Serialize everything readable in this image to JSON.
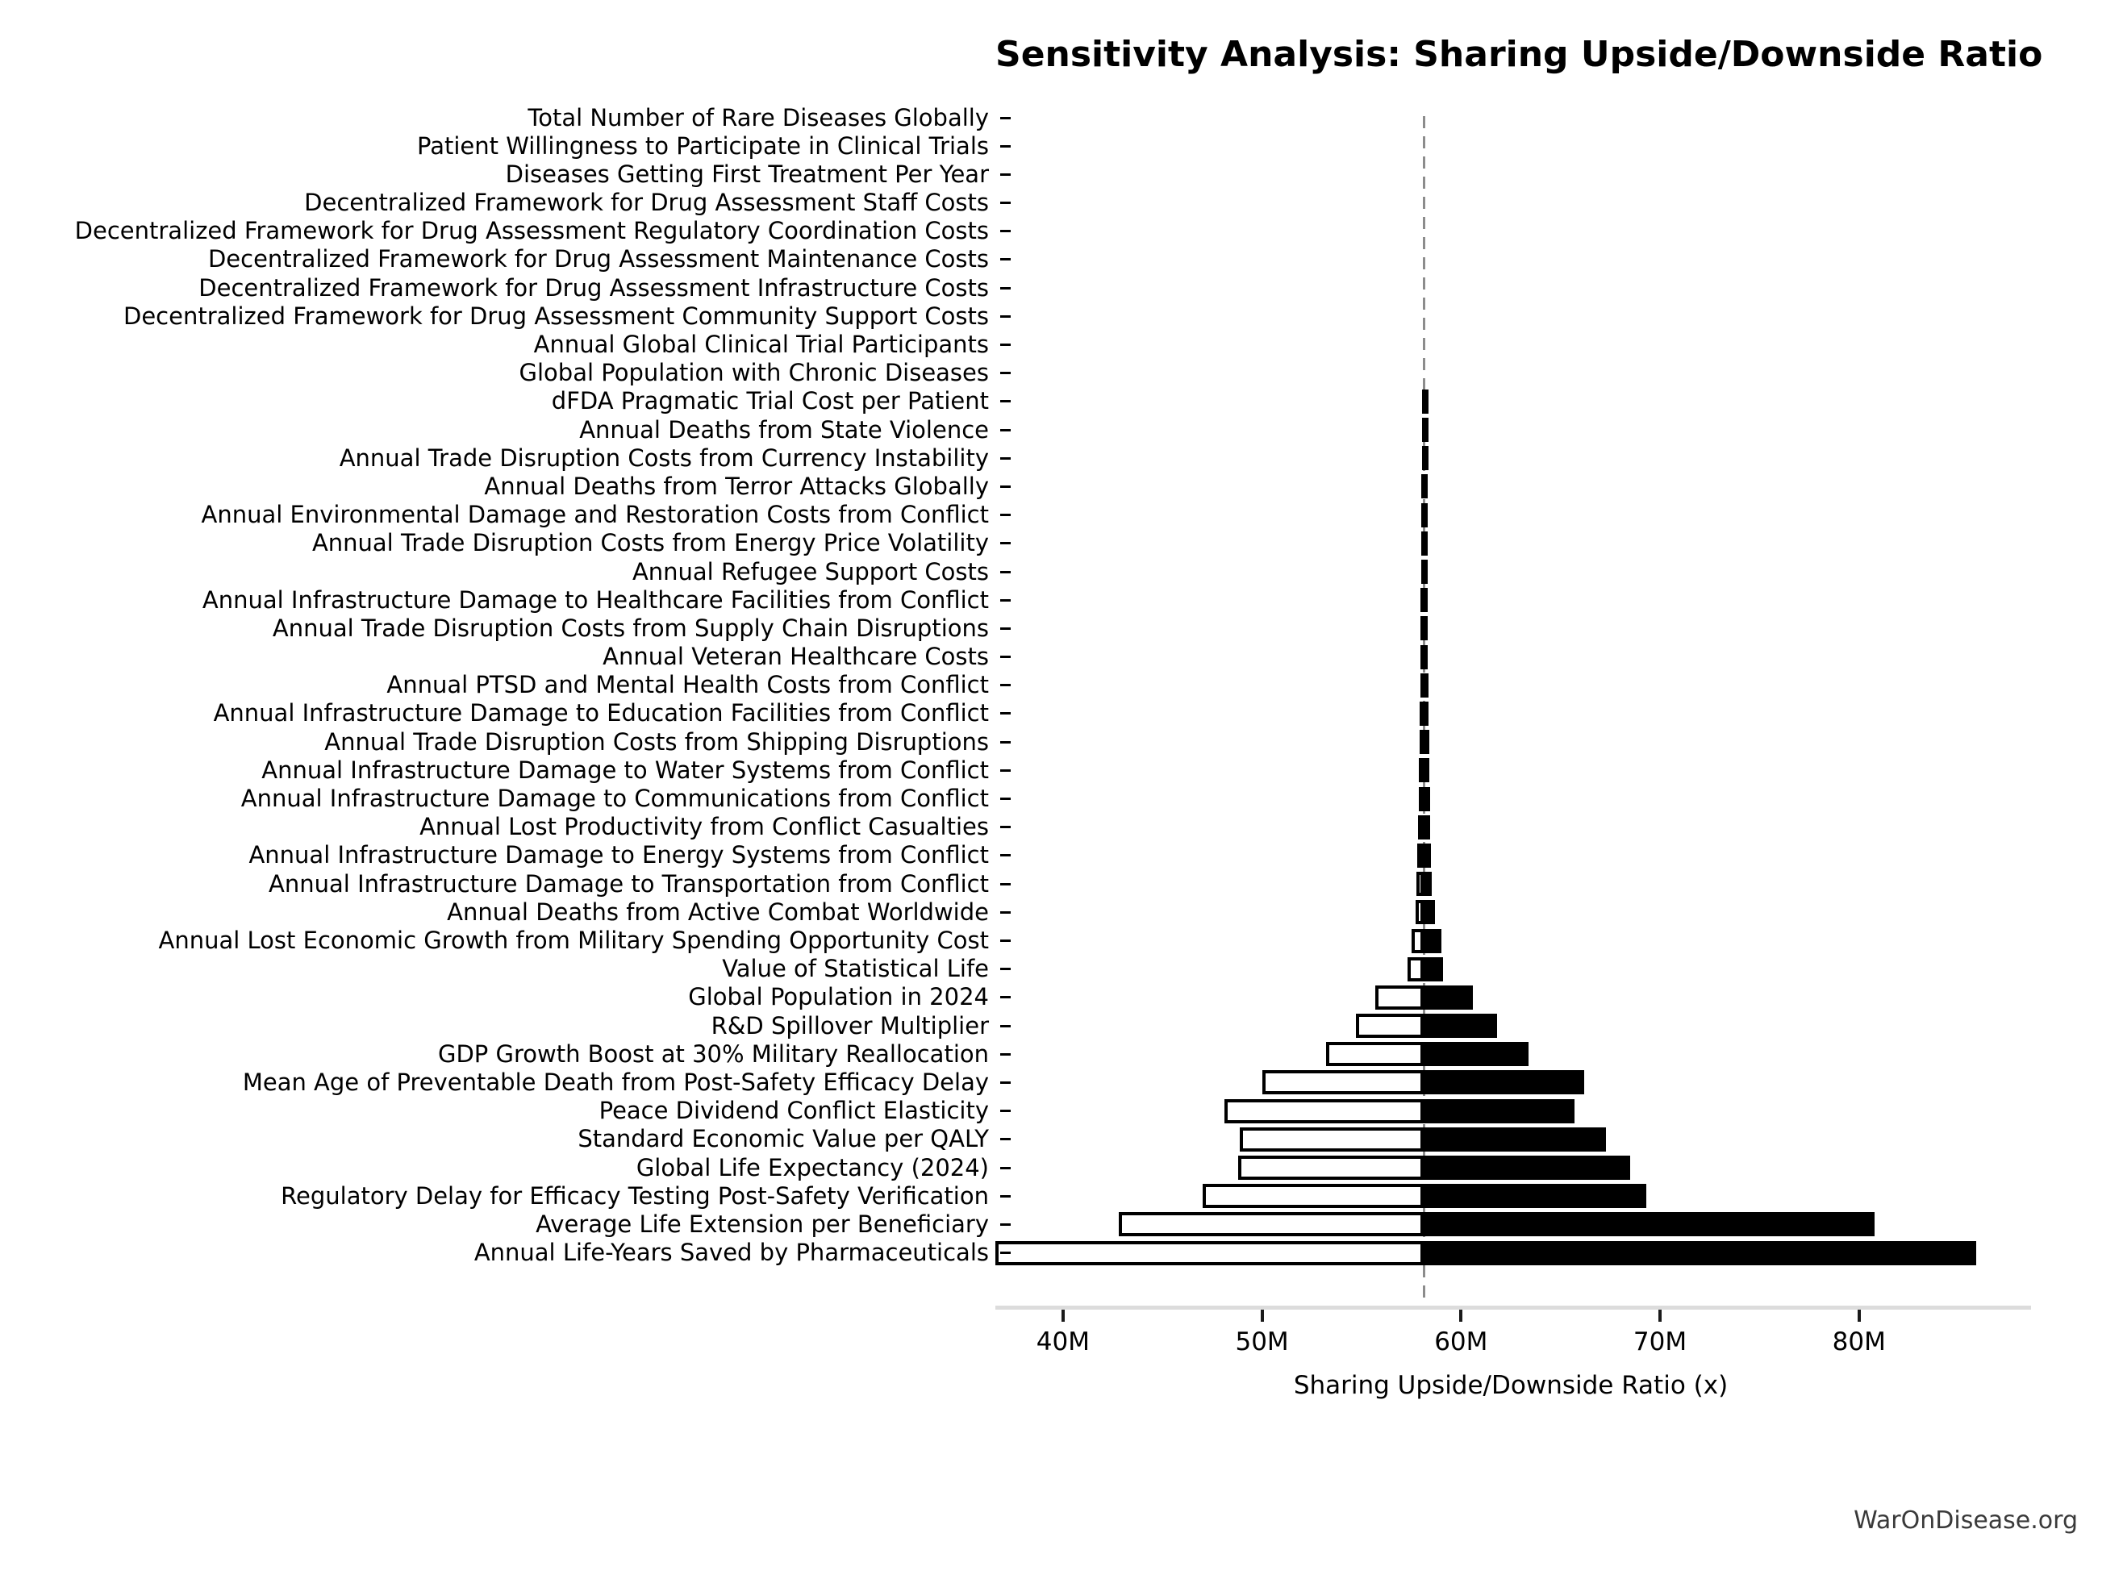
{
  "title": "Sensitivity Analysis: Sharing Upside/Downside Ratio",
  "watermark": "WarOnDisease.org",
  "chart_data": {
    "type": "bar",
    "subtype": "tornado-sensitivity",
    "orientation": "horizontal",
    "title": "Sensitivity Analysis: Sharing Upside/Downside Ratio",
    "xlabel": "Sharing Upside/Downside Ratio (x)",
    "unit": "M",
    "xlim": [
      36.6,
      88.4
    ],
    "baseline_value": 58.14,
    "baseline_style": "dashed-gray-vertical-line",
    "grid": false,
    "legend": "none",
    "x_ticks": [
      {
        "v": 40,
        "label": "40M"
      },
      {
        "v": 50,
        "label": "50M"
      },
      {
        "v": 60,
        "label": "60M"
      },
      {
        "v": 70,
        "label": "70M"
      },
      {
        "v": 80,
        "label": "80M"
      }
    ],
    "colors": {
      "low_fill": "#ffffff",
      "high_fill": "#000000",
      "bar_edge": "#000000",
      "baseline": "#8c8c8c",
      "axis_line": "#dcdcdc",
      "text": "#000000",
      "watermark": "#3a3a3a"
    },
    "rows": [
      {
        "label": "Total Number of Rare Diseases Globally",
        "low": 58.14,
        "high": 58.14
      },
      {
        "label": "Patient Willingness to Participate in Clinical Trials",
        "low": 58.14,
        "high": 58.14
      },
      {
        "label": "Diseases Getting First Treatment Per Year",
        "low": 58.14,
        "high": 58.14
      },
      {
        "label": "Decentralized Framework for Drug Assessment Staff Costs",
        "low": 58.14,
        "high": 58.14
      },
      {
        "label": "Decentralized Framework for Drug Assessment Regulatory Coordination Costs",
        "low": 58.14,
        "high": 58.14
      },
      {
        "label": "Decentralized Framework for Drug Assessment Maintenance Costs",
        "low": 58.14,
        "high": 58.14
      },
      {
        "label": "Decentralized Framework for Drug Assessment Infrastructure Costs",
        "low": 58.14,
        "high": 58.14
      },
      {
        "label": "Decentralized Framework for Drug Assessment Community Support Costs",
        "low": 58.14,
        "high": 58.14
      },
      {
        "label": "Annual Global Clinical Trial Participants",
        "low": 58.14,
        "high": 58.14
      },
      {
        "label": "Global Population with Chronic Diseases",
        "low": 58.14,
        "high": 58.14
      },
      {
        "label": "dFDA Pragmatic Trial Cost per Patient",
        "low": 58.05,
        "high": 58.25
      },
      {
        "label": "Annual Deaths from State Violence",
        "low": 58.04,
        "high": 58.26
      },
      {
        "label": "Annual Trade Disruption Costs from Currency Instability",
        "low": 58.03,
        "high": 58.27
      },
      {
        "label": "Annual Deaths from Terror Attacks Globally",
        "low": 58.02,
        "high": 58.28
      },
      {
        "label": "Annual Environmental Damage and Restoration Costs from Conflict",
        "low": 58.01,
        "high": 58.29
      },
      {
        "label": "Annual Trade Disruption Costs from Energy Price Volatility",
        "low": 58.0,
        "high": 58.3
      },
      {
        "label": "Annual Refugee Support Costs",
        "low": 57.99,
        "high": 58.31
      },
      {
        "label": "Annual Infrastructure Damage to Healthcare Facilities from Conflict",
        "low": 57.98,
        "high": 58.32
      },
      {
        "label": "Annual Trade Disruption Costs from Supply Chain Disruptions",
        "low": 57.97,
        "high": 58.33
      },
      {
        "label": "Annual Veteran Healthcare Costs",
        "low": 57.96,
        "high": 58.34
      },
      {
        "label": "Annual PTSD and Mental Health Costs from Conflict",
        "low": 57.95,
        "high": 58.35
      },
      {
        "label": "Annual Infrastructure Damage to Education Facilities from Conflict",
        "low": 57.93,
        "high": 58.37
      },
      {
        "label": "Annual Trade Disruption Costs from Shipping Disruptions",
        "low": 57.91,
        "high": 58.39
      },
      {
        "label": "Annual Infrastructure Damage to Water Systems from Conflict",
        "low": 57.89,
        "high": 58.41
      },
      {
        "label": "Annual Infrastructure Damage to Communications from Conflict",
        "low": 57.87,
        "high": 58.43
      },
      {
        "label": "Annual Lost Productivity from Conflict Casualties",
        "low": 57.84,
        "high": 58.46
      },
      {
        "label": "Annual Infrastructure Damage to Energy Systems from Conflict",
        "low": 57.81,
        "high": 58.49
      },
      {
        "label": "Annual Infrastructure Damage to Transportation from Conflict",
        "low": 57.77,
        "high": 58.52
      },
      {
        "label": "Annual Deaths from Active Combat Worldwide",
        "low": 57.7,
        "high": 58.7
      },
      {
        "label": "Annual Lost Economic Growth from Military Spending Opportunity Cost",
        "low": 57.5,
        "high": 59.0
      },
      {
        "label": "Value of Statistical Life",
        "low": 57.3,
        "high": 59.1
      },
      {
        "label": "Global Population in 2024",
        "low": 55.7,
        "high": 60.6
      },
      {
        "label": "R&D Spillover Multiplier",
        "low": 54.7,
        "high": 61.8
      },
      {
        "label": "GDP Growth Boost at 30% Military Reallocation",
        "low": 53.2,
        "high": 63.4
      },
      {
        "label": "Mean Age of Preventable Death from Post-Safety Efficacy Delay",
        "low": 50.0,
        "high": 66.2
      },
      {
        "label": "Peace Dividend Conflict Elasticity",
        "low": 48.1,
        "high": 65.7
      },
      {
        "label": "Standard Economic Value per QALY",
        "low": 48.9,
        "high": 67.3
      },
      {
        "label": "Global Life Expectancy (2024)",
        "low": 48.8,
        "high": 68.5
      },
      {
        "label": "Regulatory Delay for Efficacy Testing Post-Safety Verification",
        "low": 47.0,
        "high": 69.3
      },
      {
        "label": "Average Life Extension per Beneficiary",
        "low": 42.8,
        "high": 80.8
      },
      {
        "label": "Annual Life-Years Saved by Pharmaceuticals",
        "low": 36.6,
        "high": 85.9
      }
    ]
  }
}
